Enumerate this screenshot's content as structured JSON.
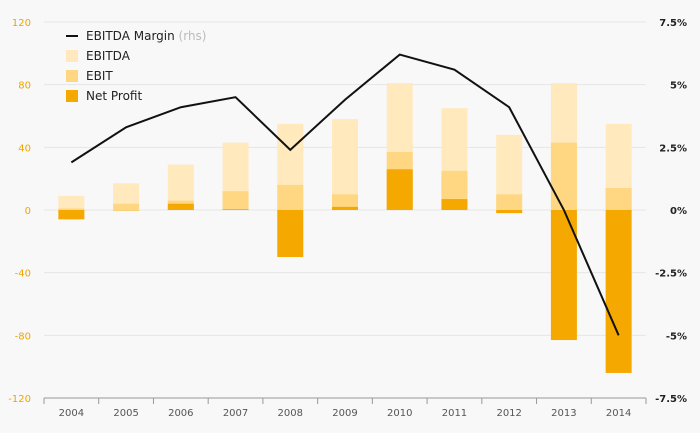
{
  "chart_data": {
    "type": "bar",
    "categories": [
      "2004",
      "2005",
      "2006",
      "2007",
      "2008",
      "2009",
      "2010",
      "2011",
      "2012",
      "2013",
      "2014"
    ],
    "series": [
      {
        "name": "EBITDA",
        "kind": "bar",
        "axis": "left",
        "color": "#ffe9bd",
        "values": [
          9,
          17,
          29,
          43,
          55,
          58,
          81,
          65,
          48,
          81,
          55
        ]
      },
      {
        "name": "EBIT",
        "kind": "bar",
        "axis": "left",
        "color": "#ffd782",
        "values": [
          1,
          4,
          6,
          12,
          16,
          10,
          37,
          25,
          10,
          43,
          14
        ]
      },
      {
        "name": "Net Profit",
        "kind": "bar",
        "axis": "left",
        "color": "#f5a800",
        "values": [
          -6,
          0,
          4,
          0.5,
          -30,
          2,
          26,
          7,
          -2,
          -83,
          -104
        ]
      },
      {
        "name": "EBITDA Margin",
        "kind": "line",
        "axis": "right",
        "color": "#111111",
        "values": [
          1.9,
          3.3,
          4.1,
          4.5,
          2.4,
          4.4,
          6.2,
          5.6,
          4.1,
          0.0,
          -5.0
        ]
      }
    ],
    "legend": [
      {
        "label": "EBITDA Margin",
        "suffix": "(rhs)",
        "kind": "line",
        "color": "#111111"
      },
      {
        "label": "EBITDA",
        "kind": "box",
        "color": "#ffe9bd"
      },
      {
        "label": "EBIT",
        "kind": "box",
        "color": "#ffd782"
      },
      {
        "label": "Net Profit",
        "kind": "box",
        "color": "#f5a800"
      }
    ],
    "legend_position": "top-left",
    "left_axis": {
      "ylim": [
        -120,
        120
      ],
      "ticks": [
        120,
        80,
        40,
        0,
        -40,
        -80,
        -120
      ],
      "tick_labels": [
        "120",
        "80",
        "40",
        "0",
        "-40",
        "-80",
        "-120"
      ],
      "color": "#f0a500"
    },
    "right_axis": {
      "ylim": [
        -7.5,
        7.5
      ],
      "ticks": [
        7.5,
        5,
        2.5,
        0,
        -2.5,
        -5,
        -7.5
      ],
      "tick_labels": [
        "7.5%",
        "5%",
        "2.5%",
        "0%",
        "-2.5%",
        "-5%",
        "-7.5%"
      ],
      "color": "#222222"
    },
    "grid": true,
    "colors": {
      "background": "#f8f8f8",
      "gridline": "#e6e6e6",
      "axis": "#999999"
    }
  }
}
